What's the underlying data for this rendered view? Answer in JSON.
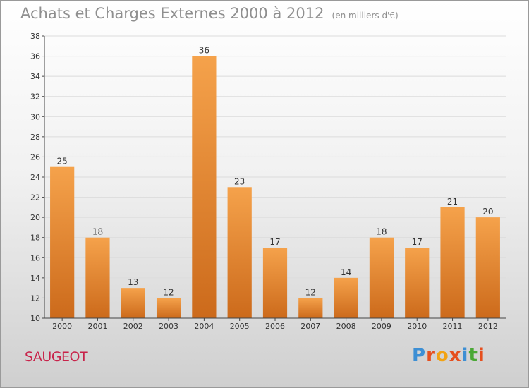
{
  "header": {
    "title": "Achats et Charges Externes 2000 à 2012",
    "unit": "(en milliers d'€)"
  },
  "commune": "SAUGEOT",
  "logo": {
    "letters": [
      "P",
      "r",
      "o",
      "x",
      "i",
      "t",
      "i"
    ],
    "colors": [
      "#3d8fd4",
      "#e64f1e",
      "#f2a313",
      "#e64f1e",
      "#3d8fd4",
      "#4aa836",
      "#e64f1e"
    ]
  },
  "chart_data": {
    "type": "bar",
    "title": "Achats et Charges Externes 2000 à 2012",
    "categories": [
      "2000",
      "2001",
      "2002",
      "2003",
      "2004",
      "2005",
      "2006",
      "2007",
      "2008",
      "2009",
      "2010",
      "2011",
      "2012"
    ],
    "values": [
      25,
      18,
      13,
      12,
      36,
      23,
      17,
      12,
      14,
      18,
      17,
      21,
      20
    ],
    "ylim": [
      10,
      38
    ],
    "yticks": [
      10,
      12,
      14,
      16,
      18,
      20,
      22,
      24,
      26,
      28,
      30,
      32,
      34,
      36,
      38
    ],
    "grid": true,
    "bar_color": "#ef8f35"
  }
}
